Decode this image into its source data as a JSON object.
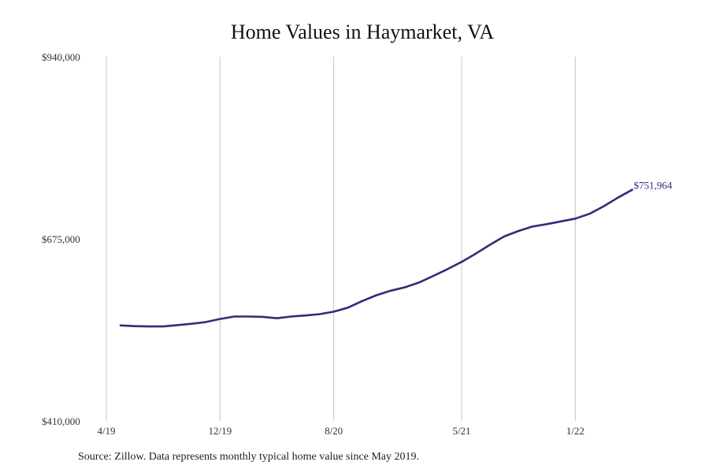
{
  "chart_data": {
    "type": "line",
    "title": "Home Values in Haymarket, VA",
    "xlabel": "",
    "ylabel": "",
    "ylim": [
      410000,
      940000
    ],
    "yticks": [
      {
        "value": 410000,
        "label": "$410,000"
      },
      {
        "value": 675000,
        "label": "$675,000"
      },
      {
        "value": 940000,
        "label": "$940,000"
      }
    ],
    "xticks": [
      {
        "date": "2019-04",
        "label": "4/19"
      },
      {
        "date": "2019-12",
        "label": "12/19"
      },
      {
        "date": "2020-08",
        "label": "8/20"
      },
      {
        "date": "2021-05",
        "label": "5/21"
      },
      {
        "date": "2022-01",
        "label": "1/22"
      }
    ],
    "grid": "vertical",
    "series": [
      {
        "color": "#2e2e7a",
        "points": [
          {
            "x": "2019-05",
            "y": 549000
          },
          {
            "x": "2019-06",
            "y": 548000
          },
          {
            "x": "2019-07",
            "y": 547500
          },
          {
            "x": "2019-08",
            "y": 547500
          },
          {
            "x": "2019-09",
            "y": 549500
          },
          {
            "x": "2019-10",
            "y": 551500
          },
          {
            "x": "2019-11",
            "y": 554000
          },
          {
            "x": "2019-12",
            "y": 558500
          },
          {
            "x": "2020-01",
            "y": 562000
          },
          {
            "x": "2020-02",
            "y": 562000
          },
          {
            "x": "2020-03",
            "y": 561500
          },
          {
            "x": "2020-04",
            "y": 559500
          },
          {
            "x": "2020-05",
            "y": 562000
          },
          {
            "x": "2020-06",
            "y": 563500
          },
          {
            "x": "2020-07",
            "y": 565500
          },
          {
            "x": "2020-08",
            "y": 569000
          },
          {
            "x": "2020-09",
            "y": 575000
          },
          {
            "x": "2020-10",
            "y": 584500
          },
          {
            "x": "2020-11",
            "y": 593000
          },
          {
            "x": "2020-12",
            "y": 599500
          },
          {
            "x": "2021-01",
            "y": 604500
          },
          {
            "x": "2021-02",
            "y": 611500
          },
          {
            "x": "2021-03",
            "y": 621000
          },
          {
            "x": "2021-04",
            "y": 631000
          },
          {
            "x": "2021-05",
            "y": 641500
          },
          {
            "x": "2021-06",
            "y": 653500
          },
          {
            "x": "2021-07",
            "y": 666500
          },
          {
            "x": "2021-08",
            "y": 678500
          },
          {
            "x": "2021-09",
            "y": 686500
          },
          {
            "x": "2021-10",
            "y": 693000
          },
          {
            "x": "2021-11",
            "y": 696500
          },
          {
            "x": "2021-12",
            "y": 700500
          },
          {
            "x": "2022-01",
            "y": 704500
          },
          {
            "x": "2022-02",
            "y": 711500
          },
          {
            "x": "2022-03",
            "y": 722500
          },
          {
            "x": "2022-04",
            "y": 735000
          },
          {
            "x": "2022-05",
            "y": 746500
          }
        ],
        "end_label": "$751,964"
      }
    ]
  },
  "footer": {
    "source": "Source: Zillow. Data represents monthly typical home value since May 2019."
  }
}
